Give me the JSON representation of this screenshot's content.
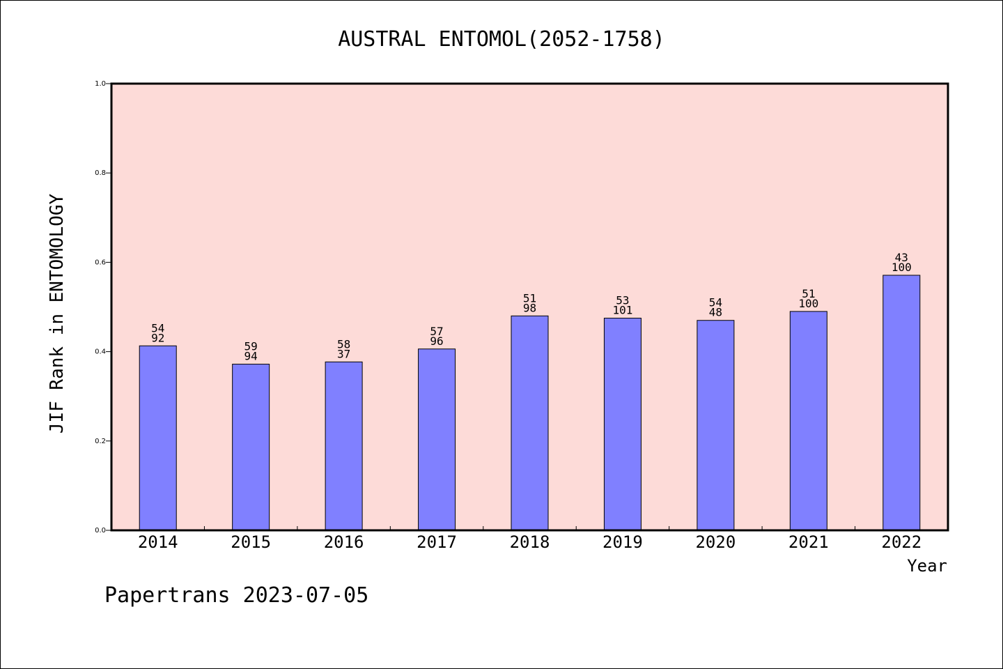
{
  "footer": "Papertrans 2023-07-05",
  "colors": {
    "plot_background": "#fddbd8",
    "bar_fill": "#8080ff",
    "bar_stroke": "#000000"
  },
  "chart_data": {
    "type": "bar",
    "title": "AUSTRAL ENTOMOL(2052-1758)",
    "xlabel": "Year",
    "ylabel": "JIF Rank in ENTOMOLOGY",
    "ylim": [
      0,
      1.0
    ],
    "yticks": [
      "0.0",
      "0.2",
      "0.4",
      "0.6",
      "0.8",
      "1.0"
    ],
    "grid": false,
    "categories": [
      "2014",
      "2015",
      "2016",
      "2017",
      "2018",
      "2019",
      "2020",
      "2021",
      "2022"
    ],
    "values": [
      0.413,
      0.372,
      0.377,
      0.406,
      0.48,
      0.475,
      0.47,
      0.49,
      0.571
    ],
    "annotations_top": [
      "54",
      "59",
      "58",
      "57",
      "51",
      "53",
      "54",
      "51",
      "43"
    ],
    "annotations_bottom": [
      "92",
      "94",
      "37",
      "96",
      "98",
      "101",
      "48",
      "100",
      "100"
    ]
  }
}
